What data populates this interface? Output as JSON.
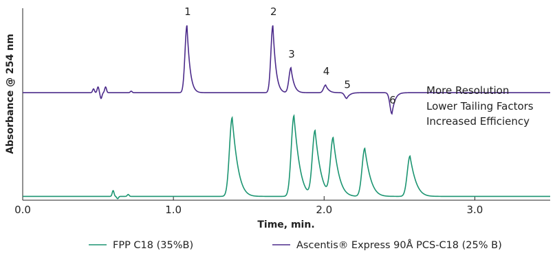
{
  "chart_data": {
    "type": "line",
    "xlabel": "Time, min.",
    "ylabel": "Absorbance @ 254 nm",
    "xlim": [
      0,
      3.5
    ],
    "xticks": [
      0,
      1,
      2,
      3
    ],
    "xtick_labels": [
      "0.0",
      "1.0",
      "2.0",
      "3.0"
    ],
    "grid": false,
    "legend_position": "bottom",
    "series": [
      {
        "name": "Ascentis® Express 90Å PCS-C18 (25% B)",
        "color": "#4b2a8a",
        "baseline": 0.56,
        "peaks": [
          {
            "label": "1",
            "t": 1.09,
            "height": 0.91
          },
          {
            "label": "2",
            "t": 1.66,
            "height": 0.91
          },
          {
            "label": "3",
            "t": 1.78,
            "height": 0.69
          },
          {
            "label": "4",
            "t": 2.01,
            "height": 0.6
          },
          {
            "label": "5",
            "t": 2.15,
            "height": 0.53
          },
          {
            "label": "6",
            "t": 2.45,
            "height": 0.45
          }
        ]
      },
      {
        "name": "FPP C18 (35%B)",
        "color": "#1a9470",
        "baseline": 0.02,
        "peaks": [
          {
            "t": 1.39,
            "height": 0.43
          },
          {
            "t": 1.8,
            "height": 0.44
          },
          {
            "t": 1.94,
            "height": 0.36
          },
          {
            "t": 2.06,
            "height": 0.32
          },
          {
            "t": 2.27,
            "height": 0.27
          },
          {
            "t": 2.57,
            "height": 0.23
          }
        ]
      }
    ],
    "annotations": [
      "More Resolution",
      "Lower Tailing Factors",
      "Increased Efficiency"
    ]
  }
}
